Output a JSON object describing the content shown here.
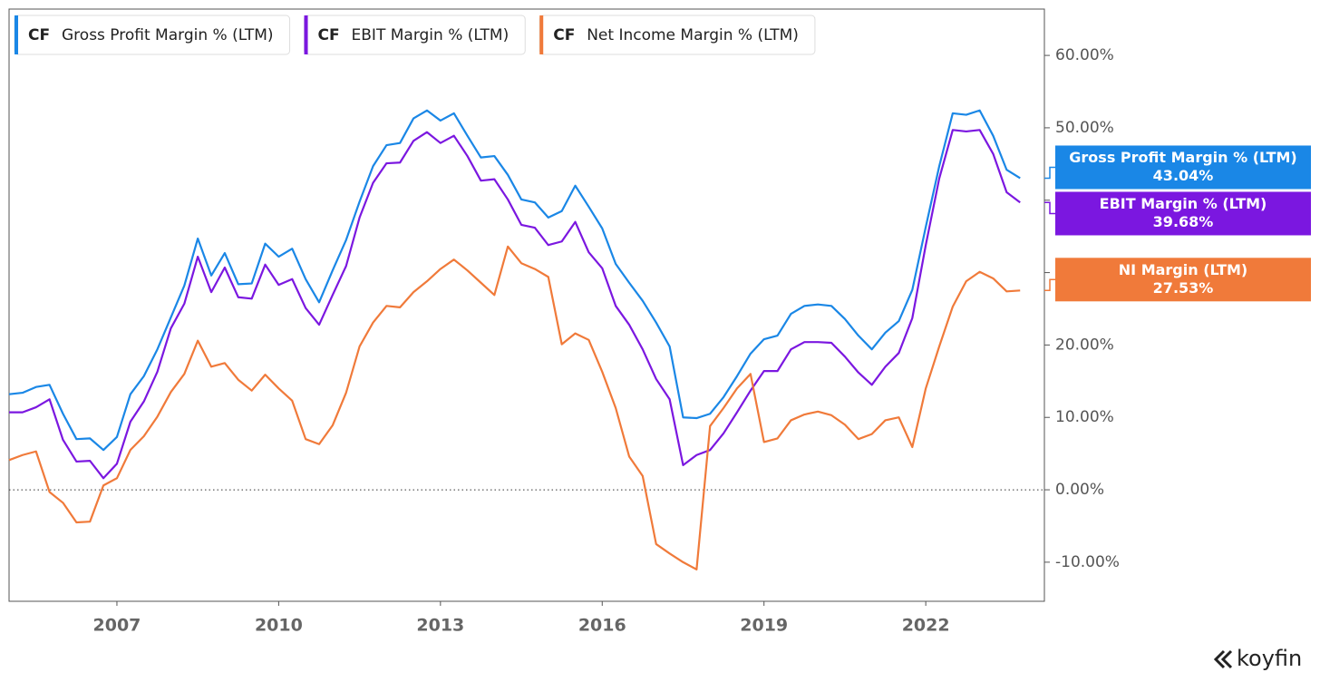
{
  "chart_data": {
    "type": "line",
    "ticker": "CF",
    "brand": "koyfin",
    "x": [
      2005,
      2005.25,
      2005.5,
      2005.75,
      2006,
      2006.25,
      2006.5,
      2006.75,
      2007,
      2007.25,
      2007.5,
      2007.75,
      2008,
      2008.25,
      2008.5,
      2008.75,
      2009,
      2009.25,
      2009.5,
      2009.75,
      2010,
      2010.25,
      2010.5,
      2010.75,
      2011,
      2011.25,
      2011.5,
      2011.75,
      2012,
      2012.25,
      2012.5,
      2012.75,
      2013,
      2013.25,
      2013.5,
      2013.75,
      2014,
      2014.25,
      2014.5,
      2014.75,
      2015,
      2015.25,
      2015.5,
      2015.75,
      2016,
      2016.25,
      2016.5,
      2016.75,
      2017,
      2017.25,
      2017.5,
      2017.75,
      2018,
      2018.25,
      2018.5,
      2018.75,
      2019,
      2019.25,
      2019.5,
      2019.75,
      2020,
      2020.25,
      2020.5,
      2020.75,
      2021,
      2021.25,
      2021.5,
      2021.75,
      2022,
      2022.25,
      2022.5,
      2022.75,
      2023,
      2023.25,
      2023.5,
      2023.75
    ],
    "xlim": [
      2005,
      2024.2
    ],
    "xticks": [
      2007,
      2010,
      2013,
      2016,
      2019,
      2022
    ],
    "ylim": [
      -15.4,
      66.4
    ],
    "yticks": [
      {
        "value": -10,
        "label": "-10.00%"
      },
      {
        "value": 0,
        "label": "0.00%"
      },
      {
        "value": 10,
        "label": "10.00%"
      },
      {
        "value": 20,
        "label": "20.00%"
      },
      {
        "value": 30,
        "label": "30.00%"
      },
      {
        "value": 40,
        "label": "40.00%"
      },
      {
        "value": 50,
        "label": "50.00%"
      },
      {
        "value": 60,
        "label": "60.00%"
      }
    ],
    "zero_line": true,
    "series": [
      {
        "name": "Gross Profit Margin % (LTM)",
        "tag": "Gross Profit Margin % (LTM)",
        "color": "#1a87e6",
        "values": [
          13.2,
          13.4,
          14.2,
          14.5,
          10.5,
          7.0,
          7.1,
          5.5,
          7.3,
          13.2,
          15.7,
          19.4,
          23.8,
          28.2,
          34.7,
          29.6,
          32.7,
          28.4,
          28.5,
          34.0,
          32.2,
          33.3,
          29.1,
          25.9,
          30.3,
          34.5,
          39.8,
          44.7,
          47.6,
          47.9,
          51.3,
          52.4,
          51.0,
          52.0,
          48.9,
          45.9,
          46.1,
          43.5,
          40.1,
          39.7,
          37.6,
          38.5,
          42.0,
          39.1,
          36.1,
          31.2,
          28.6,
          26.1,
          23.1,
          19.8,
          10.0,
          9.9,
          10.5,
          12.8,
          15.7,
          18.8,
          20.8,
          21.3,
          24.3,
          25.4,
          25.6,
          25.4,
          23.6,
          21.3,
          19.4,
          21.7,
          23.3,
          27.6,
          36.3,
          44.7,
          52.0,
          51.8,
          52.4,
          48.9,
          44.2,
          43.04
        ],
        "value_labels": {
          "75": "43.04%"
        }
      },
      {
        "name": "EBIT Margin % (LTM)",
        "tag": "EBIT Margin % (LTM)",
        "color": "#7b17e0",
        "values": [
          10.7,
          10.7,
          11.4,
          12.5,
          6.9,
          3.9,
          4.0,
          1.6,
          3.6,
          9.4,
          12.2,
          16.3,
          22.3,
          25.7,
          32.2,
          27.3,
          30.7,
          26.6,
          26.4,
          31.1,
          28.3,
          29.1,
          25.1,
          22.8,
          26.9,
          30.9,
          37.6,
          42.4,
          45.1,
          45.2,
          48.2,
          49.4,
          47.9,
          48.9,
          46.1,
          42.7,
          42.9,
          40.1,
          36.6,
          36.2,
          33.8,
          34.3,
          37.0,
          32.8,
          30.6,
          25.4,
          22.8,
          19.4,
          15.3,
          12.5,
          3.4,
          4.8,
          5.5,
          7.8,
          10.7,
          13.7,
          16.4,
          16.4,
          19.4,
          20.4,
          20.4,
          20.3,
          18.4,
          16.2,
          14.5,
          17.0,
          18.9,
          23.7,
          33.8,
          43.0,
          49.7,
          49.5,
          49.7,
          46.4,
          41.1,
          39.68
        ],
        "value_labels": {
          "75": "39.68%"
        }
      },
      {
        "name": "Net Income Margin % (LTM)",
        "tag": "NI Margin (LTM)",
        "color": "#f07a3a",
        "values": [
          4.1,
          4.8,
          5.3,
          -0.3,
          -1.8,
          -4.5,
          -4.4,
          0.6,
          1.6,
          5.5,
          7.4,
          10.1,
          13.5,
          16.0,
          20.6,
          17.0,
          17.5,
          15.2,
          13.7,
          15.9,
          14.0,
          12.3,
          7.0,
          6.3,
          8.9,
          13.4,
          19.8,
          23.1,
          25.4,
          25.2,
          27.3,
          28.8,
          30.5,
          31.8,
          30.3,
          28.6,
          26.9,
          33.6,
          31.3,
          30.5,
          29.4,
          20.1,
          21.6,
          20.7,
          16.3,
          11.3,
          4.6,
          1.9,
          -7.5,
          -8.8,
          -10.0,
          -11.0,
          8.8,
          11.3,
          14.0,
          16.0,
          6.6,
          7.1,
          9.6,
          10.4,
          10.8,
          10.3,
          9.0,
          7.0,
          7.7,
          9.6,
          10.0,
          5.9,
          14.0,
          19.8,
          25.3,
          28.8,
          30.1,
          29.2,
          27.4,
          27.53
        ],
        "value_labels": {
          "75": "27.53%"
        }
      }
    ]
  }
}
